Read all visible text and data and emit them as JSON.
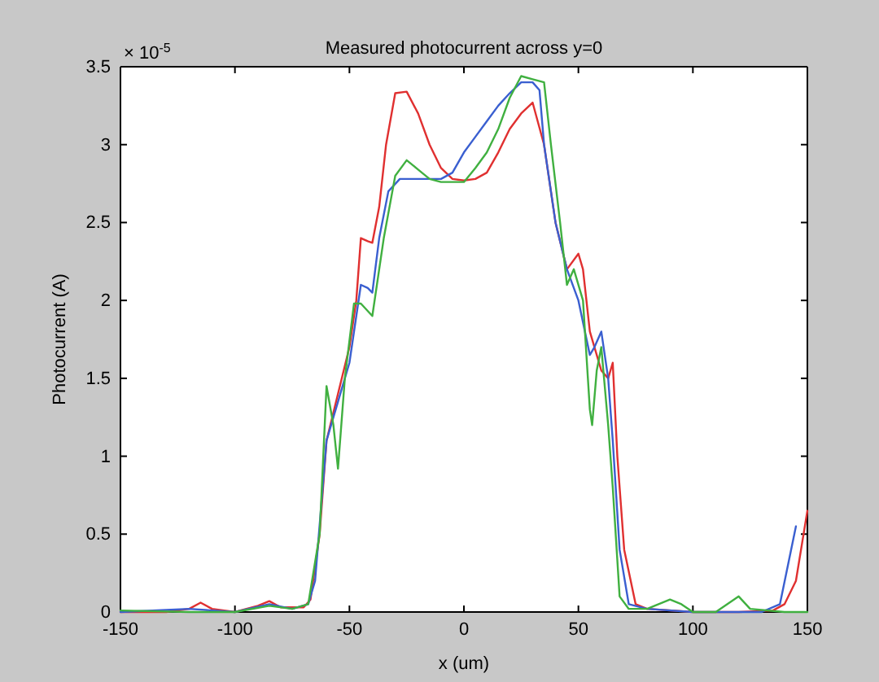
{
  "chart_data": {
    "type": "line",
    "title": "Measured photocurrent across y=0",
    "xlabel": "x (um)",
    "ylabel": "Photocurrent (A)",
    "annotations": [
      "× 10$^{-5}$"
    ],
    "xlim": [
      -150,
      150
    ],
    "xticks": [
      -150,
      -100,
      -50,
      0,
      50,
      100,
      150
    ],
    "ylim": [
      0,
      3.5
    ],
    "yticks": [
      0,
      0.5,
      1,
      1.5,
      2,
      2.5,
      3,
      3.5
    ],
    "line_style": "solid",
    "series": [
      {
        "color": "#e03030",
        "x": [
          -150,
          -130,
          -120,
          -115,
          -110,
          -100,
          -90,
          -85,
          -80,
          -70,
          -67,
          -63,
          -60,
          -55,
          -50,
          -47,
          -45,
          -42,
          -40,
          -37,
          -34,
          -30,
          -25,
          -20,
          -15,
          -10,
          -5,
          0,
          5,
          10,
          15,
          20,
          25,
          30,
          35,
          40,
          45,
          50,
          52,
          55,
          60,
          63,
          65,
          67,
          70,
          75,
          80,
          100,
          120,
          135,
          140,
          145,
          150
        ],
        "values": [
          0,
          0,
          0.02,
          0.06,
          0.02,
          0,
          0.04,
          0.07,
          0.03,
          0.03,
          0.08,
          0.5,
          1.1,
          1.4,
          1.7,
          2.0,
          2.4,
          2.38,
          2.37,
          2.6,
          3.0,
          3.33,
          3.34,
          3.2,
          3.0,
          2.85,
          2.78,
          2.77,
          2.78,
          2.82,
          2.95,
          3.1,
          3.2,
          3.27,
          3.0,
          2.5,
          2.2,
          2.3,
          2.2,
          1.8,
          1.55,
          1.5,
          1.6,
          1.0,
          0.4,
          0.05,
          0.02,
          0,
          0,
          0.01,
          0.05,
          0.2,
          0.65
        ]
      },
      {
        "color": "#3a5fd0",
        "x": [
          -150,
          -120,
          -100,
          -85,
          -75,
          -68,
          -65,
          -60,
          -55,
          -50,
          -47,
          -45,
          -42,
          -40,
          -37,
          -33,
          -28,
          -20,
          -10,
          -5,
          0,
          5,
          10,
          15,
          20,
          25,
          30,
          33,
          35,
          40,
          45,
          50,
          55,
          57,
          60,
          63,
          65,
          68,
          72,
          80,
          100,
          130,
          138,
          145
        ],
        "values": [
          0,
          0.02,
          0,
          0.05,
          0.02,
          0.05,
          0.2,
          1.1,
          1.35,
          1.6,
          1.9,
          2.1,
          2.08,
          2.05,
          2.4,
          2.7,
          2.78,
          2.78,
          2.78,
          2.82,
          2.95,
          3.05,
          3.15,
          3.25,
          3.33,
          3.4,
          3.4,
          3.35,
          3.0,
          2.5,
          2.2,
          2.0,
          1.65,
          1.7,
          1.8,
          1.5,
          1.1,
          0.4,
          0.05,
          0.02,
          0,
          0,
          0.05,
          0.55
        ]
      },
      {
        "color": "#40b040",
        "x": [
          -150,
          -120,
          -100,
          -85,
          -75,
          -68,
          -63,
          -60,
          -57,
          -55,
          -52,
          -48,
          -45,
          -40,
          -35,
          -30,
          -25,
          -20,
          -15,
          -10,
          -5,
          0,
          5,
          10,
          15,
          20,
          25,
          30,
          35,
          38,
          42,
          45,
          48,
          52,
          55,
          56,
          58,
          60,
          63,
          65,
          68,
          72,
          80,
          90,
          95,
          100,
          110,
          120,
          125,
          140,
          150
        ],
        "values": [
          0.01,
          0,
          0,
          0.04,
          0.02,
          0.05,
          0.5,
          1.45,
          1.2,
          0.92,
          1.5,
          1.98,
          1.98,
          1.9,
          2.4,
          2.8,
          2.9,
          2.84,
          2.78,
          2.76,
          2.76,
          2.76,
          2.85,
          2.95,
          3.1,
          3.3,
          3.44,
          3.42,
          3.4,
          3.0,
          2.5,
          2.1,
          2.2,
          2.0,
          1.3,
          1.2,
          1.55,
          1.7,
          1.2,
          0.8,
          0.1,
          0.02,
          0.02,
          0.08,
          0.05,
          0,
          0,
          0.1,
          0.02,
          0,
          0
        ]
      }
    ]
  }
}
